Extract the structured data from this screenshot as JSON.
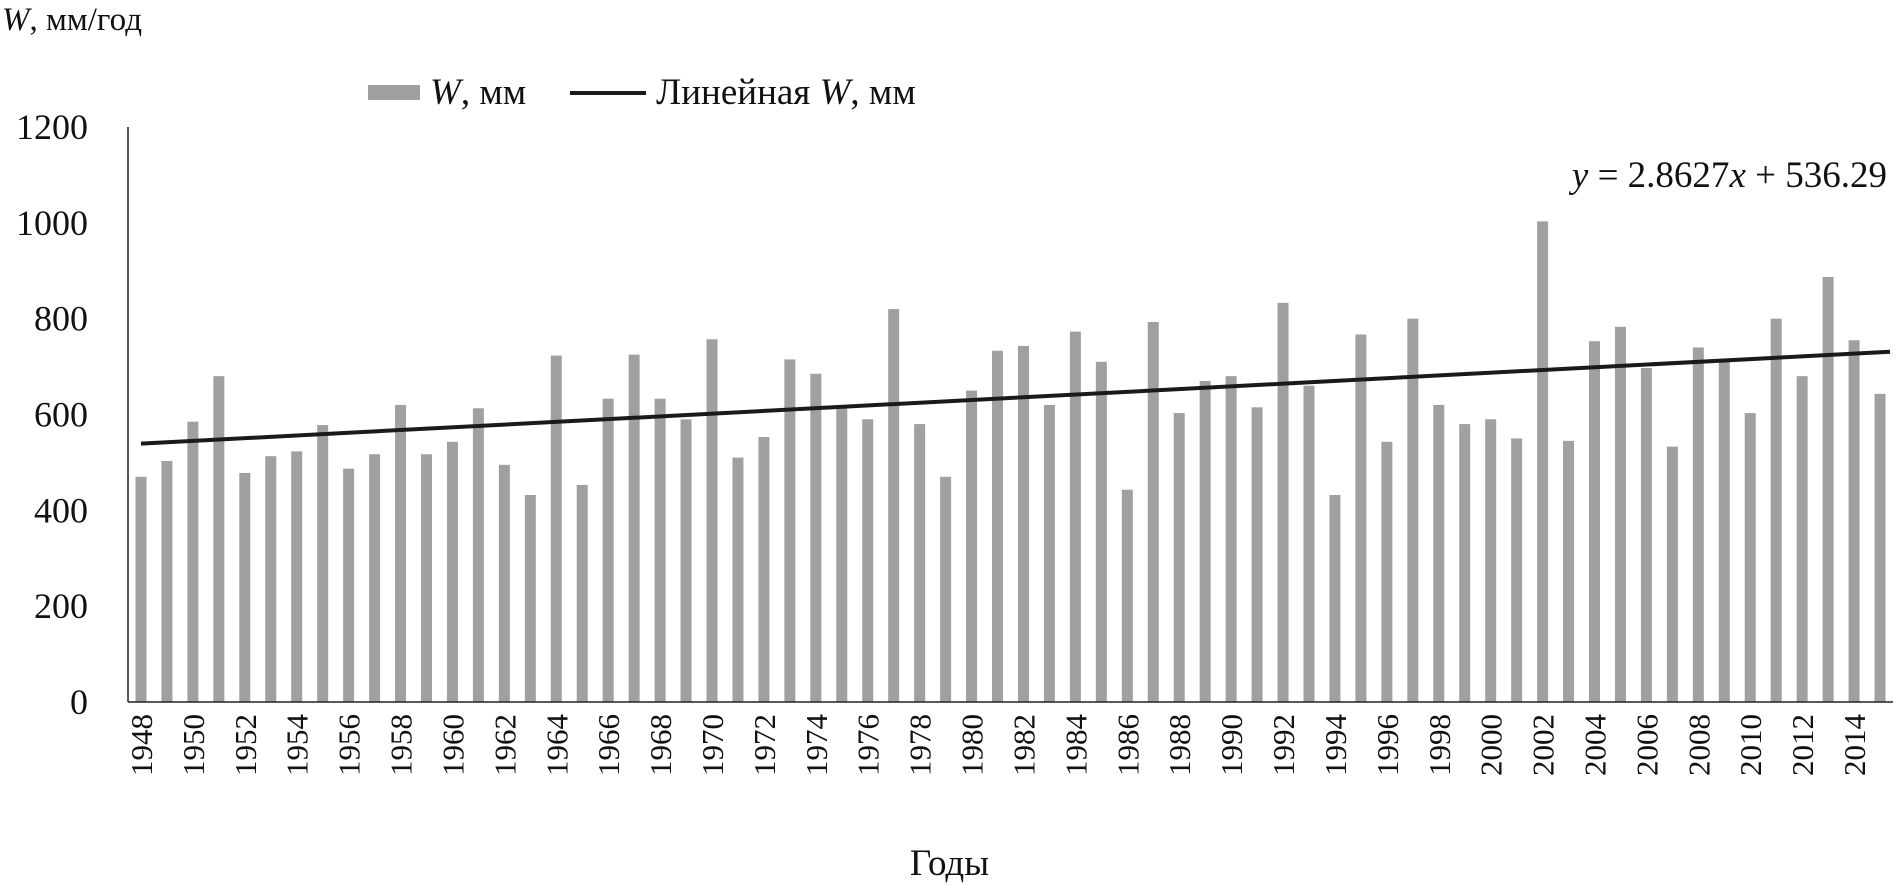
{
  "chart_data": {
    "type": "bar",
    "ylabel_var": "W",
    "ylabel_unit": ", мм/год",
    "xlabel": "Годы",
    "ylim": [
      0,
      1200
    ],
    "yticks": [
      0,
      200,
      400,
      600,
      800,
      1000,
      1200
    ],
    "legend_placement": "top-left",
    "series": [
      {
        "name_var": "W",
        "name_unit": ", мм",
        "color": "#a0a0a0",
        "x": [
          1948,
          1949,
          1950,
          1951,
          1952,
          1953,
          1954,
          1955,
          1956,
          1957,
          1958,
          1959,
          1960,
          1961,
          1962,
          1963,
          1964,
          1965,
          1966,
          1967,
          1968,
          1969,
          1970,
          1971,
          1972,
          1973,
          1974,
          1975,
          1976,
          1977,
          1978,
          1979,
          1980,
          1981,
          1982,
          1983,
          1984,
          1985,
          1986,
          1987,
          1988,
          1989,
          1990,
          1991,
          1992,
          1993,
          1994,
          1995,
          1996,
          1997,
          1998,
          1999,
          2000,
          2001,
          2002,
          2003,
          2004,
          2005,
          2006,
          2007,
          2008,
          2009,
          2010,
          2011,
          2012,
          2013,
          2014,
          2015
        ],
        "values": [
          470,
          503,
          585,
          680,
          478,
          513,
          523,
          578,
          487,
          517,
          620,
          517,
          543,
          613,
          495,
          432,
          723,
          453,
          633,
          725,
          633,
          590,
          757,
          510,
          553,
          715,
          685,
          617,
          590,
          820,
          580,
          470,
          650,
          733,
          743,
          620,
          773,
          710,
          443,
          793,
          603,
          670,
          680,
          615,
          833,
          660,
          432,
          767,
          543,
          800,
          620,
          580,
          590,
          550,
          1003,
          545,
          753,
          783,
          697,
          533,
          740,
          713,
          603,
          800,
          680,
          887,
          755,
          643
        ]
      },
      {
        "name_prefix": "Линейная ",
        "name_var": "W",
        "name_unit": ", мм",
        "type": "line",
        "color": "#1a1a1a",
        "trend": {
          "slope": 2.8627,
          "intercept": 536.29
        }
      }
    ],
    "annotation": {
      "y_var": "y",
      "middle": " = 2.8627",
      "x_var": "x",
      "tail": " + 536.29"
    }
  }
}
